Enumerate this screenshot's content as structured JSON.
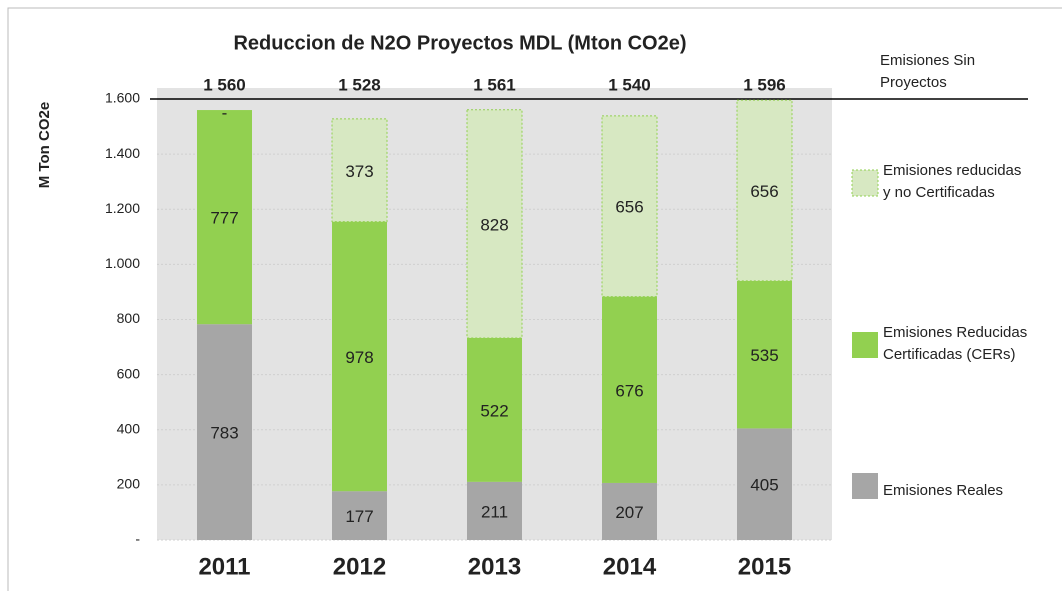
{
  "chart_data": {
    "type": "stacked-bar",
    "title": "Reduccion de N2O Proyectos MDL  (Mton CO2e)",
    "y_label": "M Ton CO2e",
    "categories": [
      "2011",
      "2012",
      "2013",
      "2014",
      "2015"
    ],
    "series": [
      {
        "name": "Emisiones Reales",
        "color": "#a6a6a6",
        "values": [
          783,
          177,
          211,
          207,
          405
        ]
      },
      {
        "name": "Emisiones Reducidas Certificadas (CERs)",
        "color": "#92d050",
        "values": [
          777,
          978,
          522,
          676,
          535
        ]
      },
      {
        "name": "Emisiones reducidas y no Certificadas",
        "color": "#d7e8c2",
        "border": "dashed",
        "values": [
          0,
          373,
          828,
          656,
          656
        ],
        "value_labels": [
          "-",
          "373",
          "828",
          "656",
          "656"
        ]
      }
    ],
    "totals": {
      "name": "Emisiones Sin Proyectos",
      "values": [
        1560,
        1528,
        1561,
        1540,
        1596
      ],
      "value_labels": [
        "1 560",
        "1 528",
        "1 561",
        "1 540",
        "1 596"
      ]
    },
    "ylim": [
      0,
      1640
    ],
    "yticks": [
      {
        "value": 0,
        "label": "-"
      },
      200,
      400,
      600,
      800,
      {
        "value": 1000,
        "label": "1.000"
      },
      {
        "value": 1200,
        "label": "1.200"
      },
      {
        "value": 1400,
        "label": "1.400"
      },
      {
        "value": 1600,
        "label": "1.600"
      }
    ],
    "grid": true,
    "legend": "right"
  }
}
